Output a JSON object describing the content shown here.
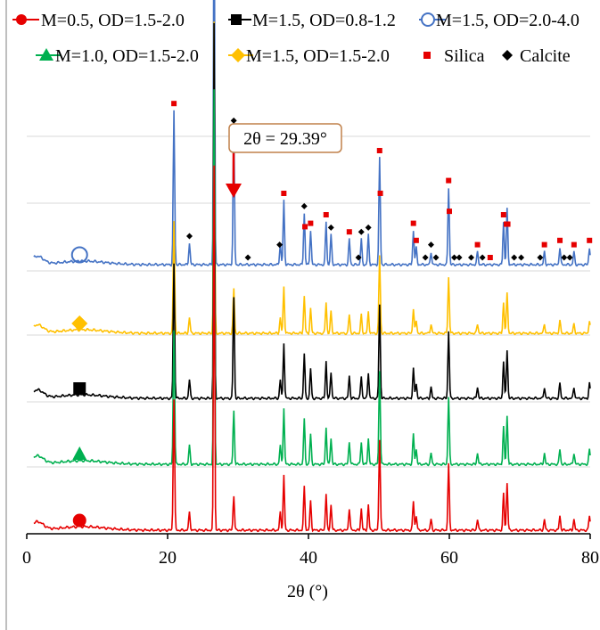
{
  "chart_data": {
    "type": "line",
    "title": "",
    "xlabel": "2θ (°)",
    "ylabel": "",
    "xlim": [
      0,
      80
    ],
    "x_ticks": [
      "0",
      "20",
      "40",
      "60",
      "80"
    ],
    "grid": true,
    "legend_position": "top",
    "annotation": {
      "text": "2θ = 29.39°",
      "x": 29.39
    },
    "series": [
      {
        "name": "M=1.5, OD=2.0-4.0",
        "color": "#4472C4",
        "marker": "open-circle",
        "marker_x": 7.5
      },
      {
        "name": "M=1.5, OD=1.5-2.0",
        "color": "#FFC000",
        "marker": "diamond",
        "marker_x": 7.5
      },
      {
        "name": "M=1.5, OD=0.8-1.2",
        "color": "#000000",
        "marker": "square",
        "marker_x": 7.5
      },
      {
        "name": "M=1.0, OD=1.5-2.0",
        "color": "#00B050",
        "marker": "triangle",
        "marker_x": 7.5
      },
      {
        "name": "M=0.5, OD=1.5-2.0",
        "color": "#E60000",
        "marker": "circle",
        "marker_x": 7.5
      }
    ],
    "phase_markers": [
      {
        "name": "Silica",
        "color": "#E60000",
        "marker": "square"
      },
      {
        "name": "Calcite",
        "color": "#000000",
        "marker": "diamond"
      }
    ],
    "silica_peaks": [
      20.9,
      26.6,
      36.5,
      39.5,
      40.3,
      42.5,
      45.8,
      50.1,
      50.2,
      54.9,
      55.3,
      59.9,
      60.0,
      64.0,
      65.8,
      67.7,
      68.1,
      68.3,
      73.5,
      75.7,
      77.7,
      79.9
    ],
    "calcite_peaks": [
      23.1,
      29.39,
      31.4,
      35.9,
      39.4,
      43.2,
      47.1,
      47.5,
      48.5,
      56.6,
      57.4,
      58.1,
      60.7,
      61.4,
      63.1,
      64.7,
      69.2,
      70.2,
      72.9,
      76.3,
      77.1
    ]
  },
  "legend": [
    {
      "label": "M=0.5, OD=1.5-2.0",
      "color": "#E60000",
      "marker": "circle"
    },
    {
      "label": "M=1.5, OD=0.8-1.2",
      "color": "#000000",
      "marker": "square"
    },
    {
      "label": "M=1.5, OD=2.0-4.0",
      "color": "#4472C4",
      "marker": "open-circle"
    },
    {
      "label": "M=1.0, OD=1.5-2.0",
      "color": "#00B050",
      "marker": "triangle"
    },
    {
      "label": "M=1.5, OD=1.5-2.0",
      "color": "#FFC000",
      "marker": "diamond"
    },
    {
      "label": "Silica",
      "color": "#E60000",
      "marker": "square"
    },
    {
      "label": "Calcite",
      "color": "#000000",
      "marker": "diamond"
    }
  ]
}
